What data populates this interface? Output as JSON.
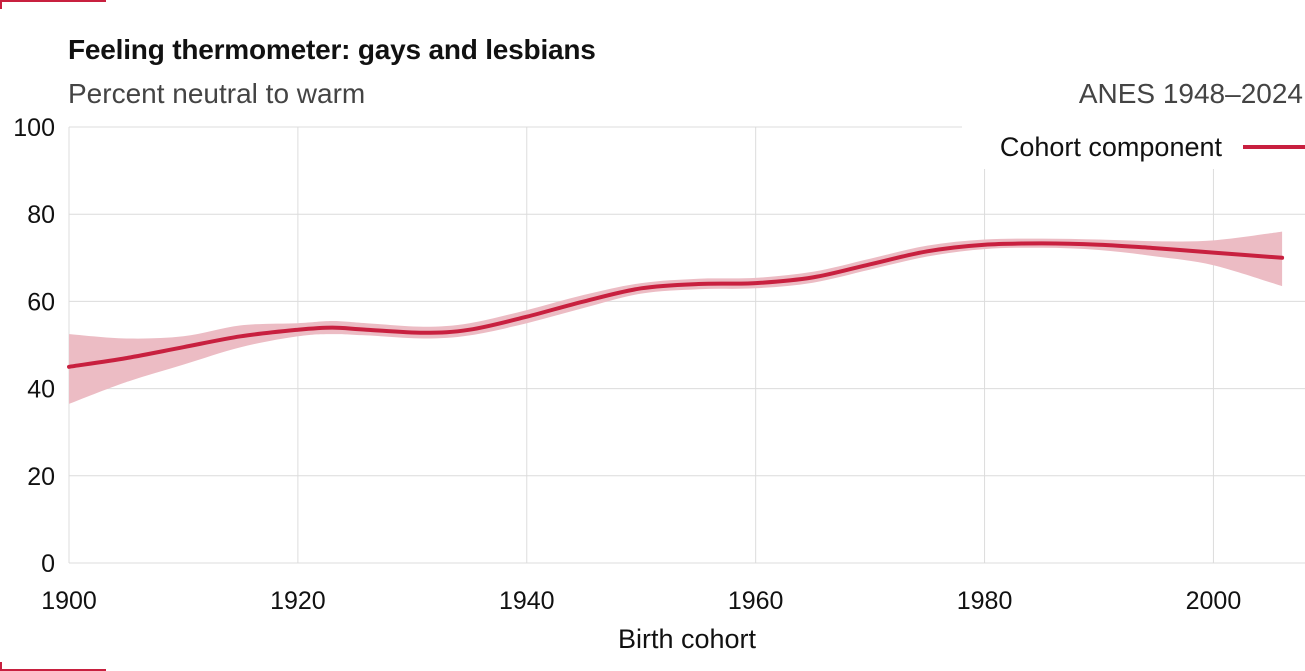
{
  "colors": {
    "line": "#c8203f",
    "band": "#ecbcc4",
    "grid": "#dcdcdc",
    "corner": "#c8203f"
  },
  "chart_data": {
    "type": "line",
    "title": "Feeling thermometer: gays and lesbians",
    "subtitle": "Percent neutral to warm",
    "source": "ANES 1948–2024",
    "xlabel": "Birth cohort",
    "ylabel": "",
    "xlim": [
      1900,
      2008
    ],
    "ylim": [
      0,
      100
    ],
    "x_ticks": [
      1900,
      1920,
      1940,
      1960,
      1980,
      2000
    ],
    "y_ticks": [
      0,
      20,
      40,
      60,
      80,
      100
    ],
    "grid": true,
    "legend_position": "top-right",
    "series": [
      {
        "name": "Cohort component",
        "x": [
          1900,
          1905,
          1910,
          1915,
          1920,
          1923,
          1926,
          1931,
          1935,
          1940,
          1945,
          1950,
          1955,
          1960,
          1965,
          1970,
          1975,
          1980,
          1985,
          1990,
          1995,
          2000,
          2006
        ],
        "y": [
          45,
          47,
          49.5,
          52,
          53.5,
          54,
          53.5,
          52.8,
          53.5,
          56.5,
          60,
          63,
          64,
          64.2,
          65.5,
          68.5,
          71.5,
          73,
          73.3,
          73,
          72.2,
          71.2,
          70
        ],
        "lower": [
          36.5,
          41.5,
          45.5,
          49.5,
          52,
          52.5,
          52.2,
          51.5,
          52.2,
          55,
          58.5,
          61.8,
          62.8,
          63,
          64.3,
          67.3,
          70.3,
          72,
          72.3,
          71.8,
          70.3,
          68.3,
          63.5
        ],
        "upper": [
          52.5,
          51.5,
          52,
          54.5,
          55,
          55.5,
          55,
          54.2,
          55,
          58,
          61.5,
          64.2,
          65.2,
          65.4,
          66.8,
          69.8,
          72.8,
          74.2,
          74.4,
          74.2,
          73.8,
          74,
          76
        ]
      }
    ]
  }
}
